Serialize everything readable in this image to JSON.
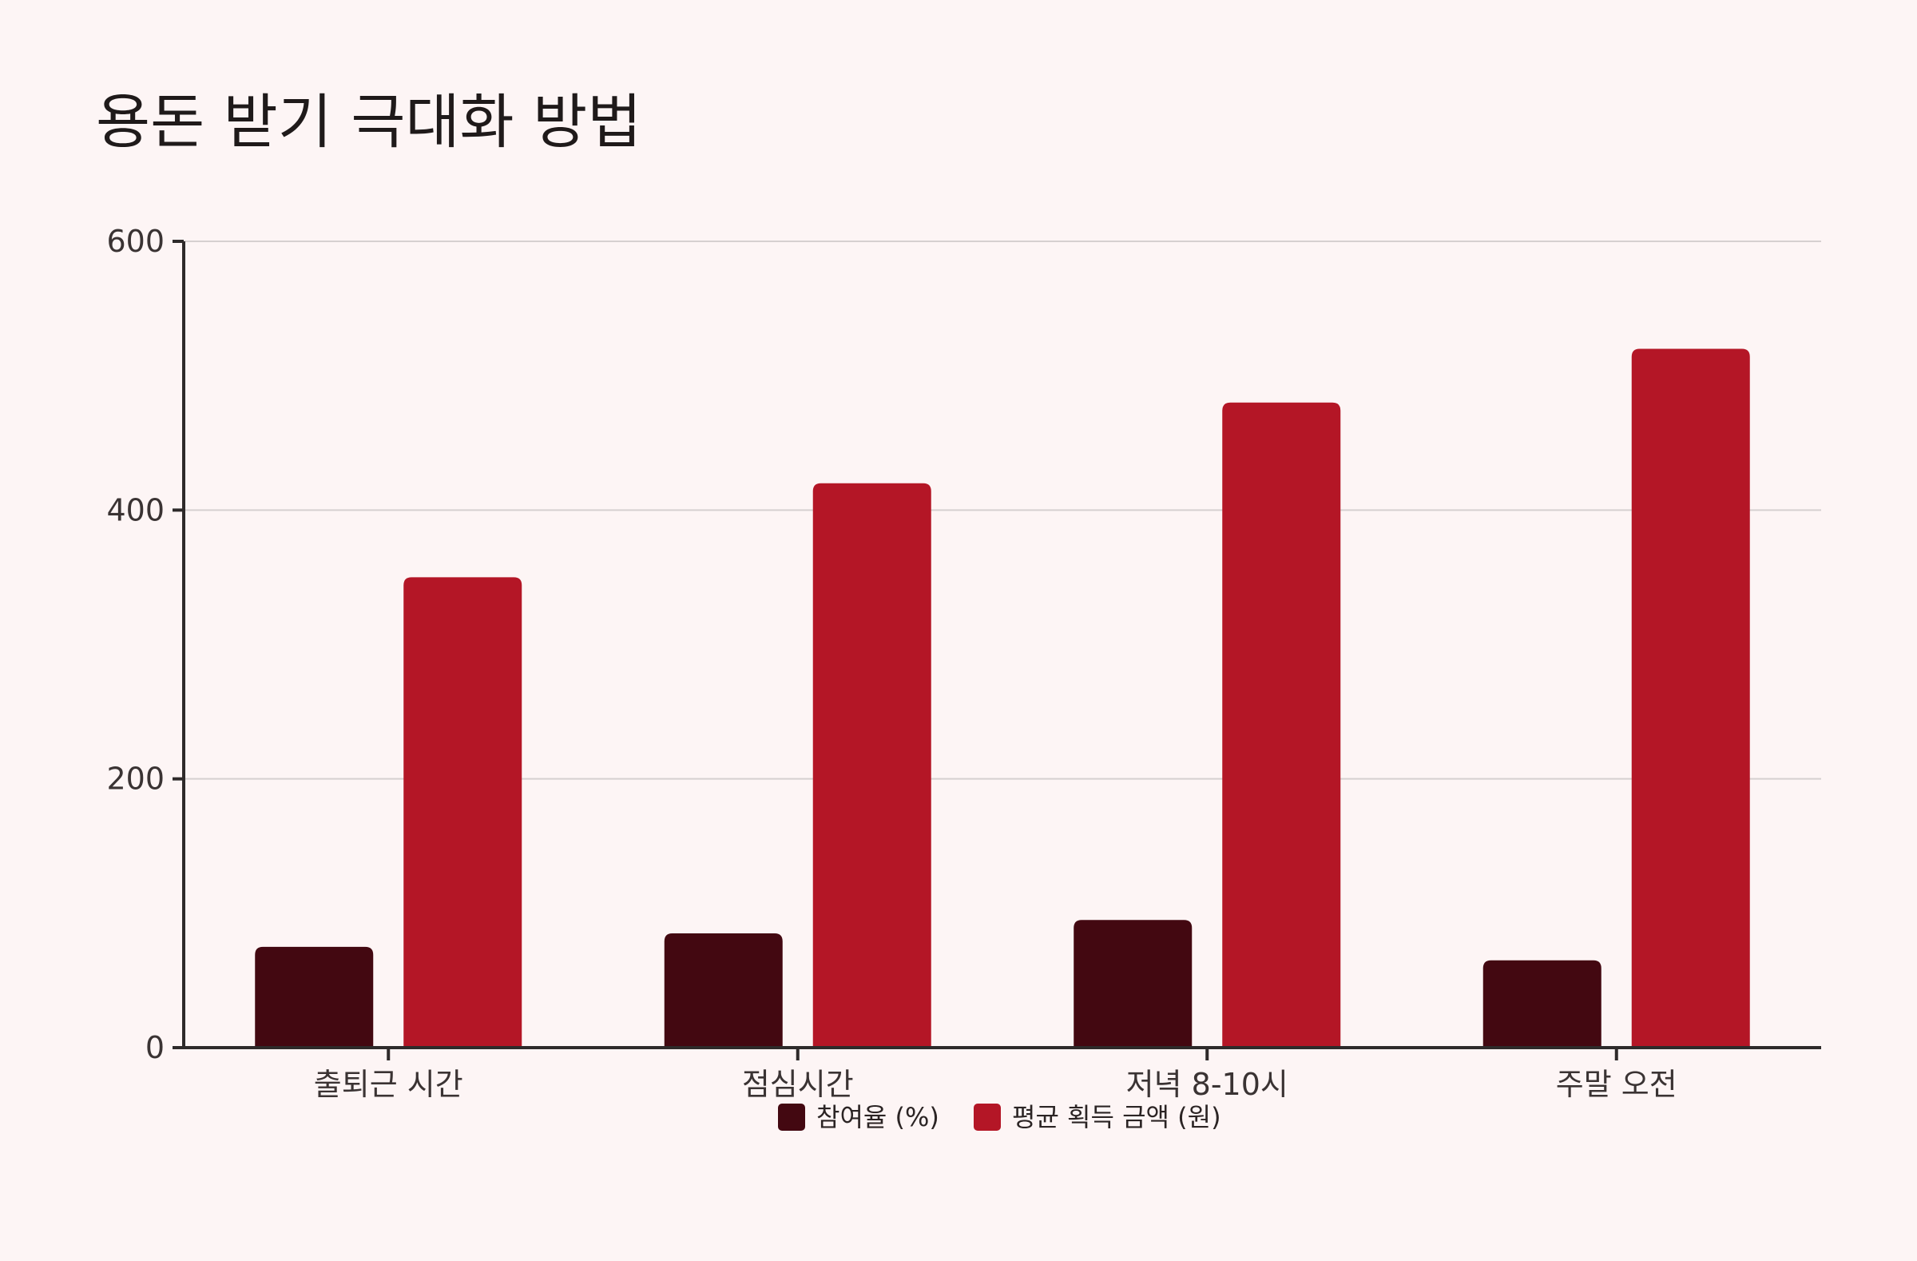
{
  "chart_data": {
    "type": "bar",
    "title": "용돈 받기 극대화 방법",
    "categories": [
      "출퇴근 시간",
      "점심시간",
      "저녁 8-10시",
      "주말 오전"
    ],
    "series": [
      {
        "name": "참여율 (%)",
        "values": [
          75,
          85,
          95,
          65
        ],
        "color": "#430811"
      },
      {
        "name": "평균 획득 금액 (원)",
        "values": [
          350,
          420,
          480,
          520
        ],
        "color": "#b41626"
      }
    ],
    "ylim": [
      0,
      600
    ],
    "yticks": [
      0,
      200,
      400,
      600
    ],
    "xlabel": "",
    "ylabel": "",
    "grid": true,
    "legend_position": "bottom-center"
  },
  "colors": {
    "background": "#fdf5f5",
    "axis": "#2e2a2a",
    "grid": "#d6d0d0"
  }
}
